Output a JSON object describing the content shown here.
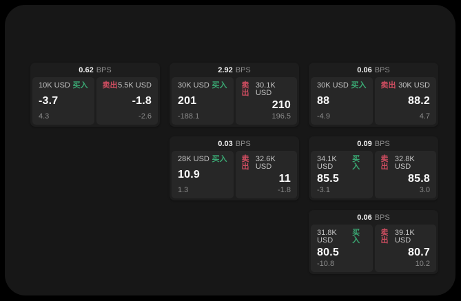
{
  "labels": {
    "buy": "买入",
    "sell": "卖出",
    "bps_unit": "BPS"
  },
  "colors": {
    "buy_accent": "#3aa873",
    "sell_accent": "#ce4d60",
    "frame_bg": "#171717",
    "card_bg": "#1d1d1d",
    "panel_bg": "#272727"
  },
  "cards": [
    {
      "bps": "0.62",
      "buy": {
        "size": "10K USD",
        "value": "-3.7",
        "sub": "4.3"
      },
      "sell": {
        "size": "5.5K USD",
        "value": "-1.8",
        "sub": "-2.6"
      }
    },
    {
      "bps": "2.92",
      "buy": {
        "size": "30K USD",
        "value": "201",
        "sub": "-188.1"
      },
      "sell": {
        "size": "30.1K USD",
        "value": "210",
        "sub": "196.5"
      }
    },
    {
      "bps": "0.06",
      "buy": {
        "size": "30K USD",
        "value": "88",
        "sub": "-4.9"
      },
      "sell": {
        "size": "30K USD",
        "value": "88.2",
        "sub": "4.7"
      }
    },
    {
      "bps": "0.03",
      "buy": {
        "size": "28K USD",
        "value": "10.9",
        "sub": "1.3"
      },
      "sell": {
        "size": "32.6K USD",
        "value": "11",
        "sub": "-1.8"
      }
    },
    {
      "bps": "0.09",
      "buy": {
        "size": "34.1K USD",
        "value": "85.5",
        "sub": "-3.1"
      },
      "sell": {
        "size": "32.8K USD",
        "value": "85.8",
        "sub": "3.0"
      }
    },
    {
      "bps": "0.06",
      "buy": {
        "size": "31.8K USD",
        "value": "80.5",
        "sub": "-10.8"
      },
      "sell": {
        "size": "39.1K USD",
        "value": "80.7",
        "sub": "10.2"
      }
    }
  ]
}
